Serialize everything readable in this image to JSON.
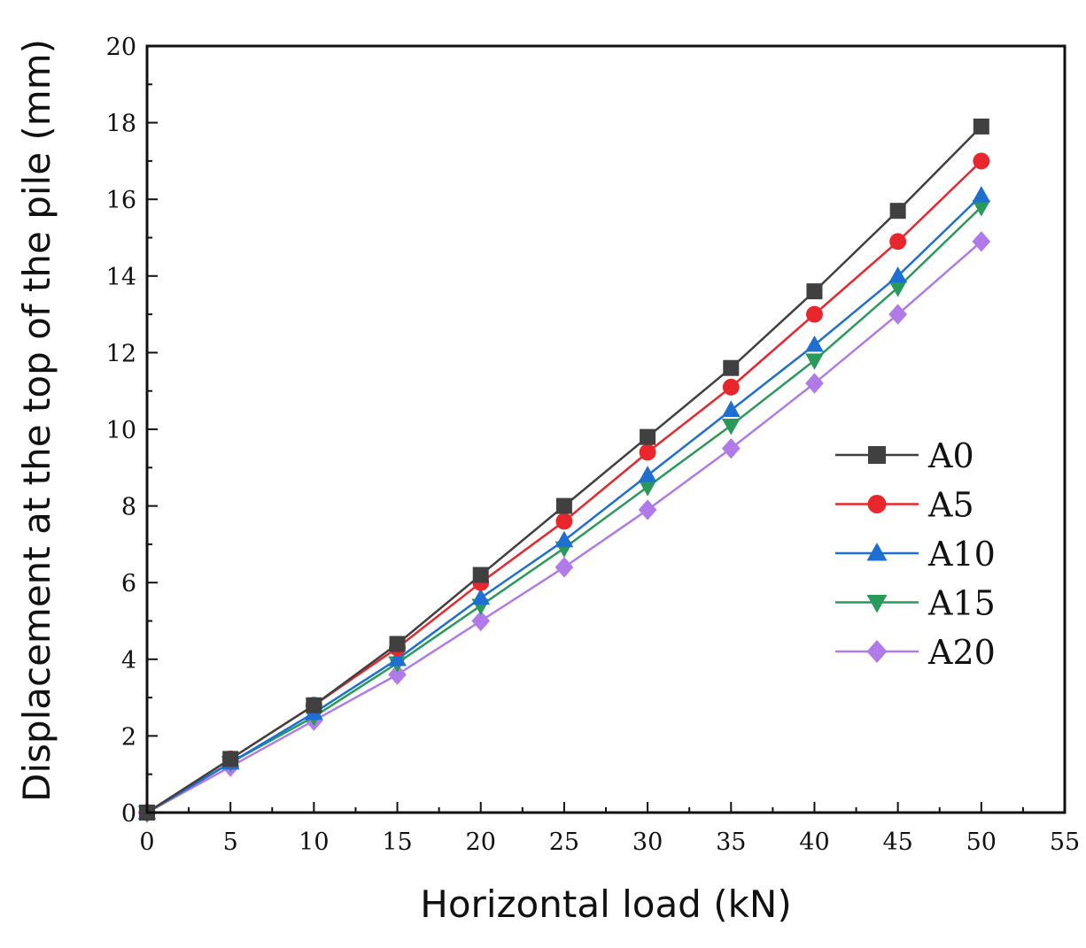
{
  "chart_data": {
    "type": "line",
    "xlabel": "Horizontal load (kN)",
    "ylabel": "Displacement at the top of the pile (mm)",
    "xlim": [
      0,
      55
    ],
    "ylim": [
      0,
      20
    ],
    "x_ticks": [
      0,
      5,
      10,
      15,
      20,
      25,
      30,
      35,
      40,
      45,
      50,
      55
    ],
    "y_ticks": [
      0,
      2,
      4,
      6,
      8,
      10,
      12,
      14,
      16,
      18,
      20
    ],
    "grid": false,
    "legend_position": "right-middle",
    "x": [
      0,
      5,
      10,
      15,
      20,
      25,
      30,
      35,
      40,
      45,
      50
    ],
    "series": [
      {
        "name": "A0",
        "marker": "square",
        "color": "#404040",
        "values": [
          0,
          1.4,
          2.8,
          4.4,
          6.2,
          8.0,
          9.8,
          11.6,
          13.6,
          15.7,
          17.9
        ]
      },
      {
        "name": "A5",
        "marker": "circle",
        "color": "#e8262b",
        "values": [
          0,
          1.4,
          2.8,
          4.3,
          6.0,
          7.6,
          9.4,
          11.1,
          13.0,
          14.9,
          17.0
        ]
      },
      {
        "name": "A10",
        "marker": "triangle-up",
        "color": "#1f6fd1",
        "values": [
          0,
          1.3,
          2.6,
          4.0,
          5.6,
          7.1,
          8.8,
          10.5,
          12.2,
          14.0,
          16.1
        ]
      },
      {
        "name": "A15",
        "marker": "triangle-down",
        "color": "#2a9a5a",
        "values": [
          0,
          1.3,
          2.5,
          3.9,
          5.4,
          6.9,
          8.5,
          10.1,
          11.8,
          13.7,
          15.8
        ]
      },
      {
        "name": "A20",
        "marker": "diamond",
        "color": "#b07be8",
        "values": [
          0,
          1.2,
          2.4,
          3.6,
          5.0,
          6.4,
          7.9,
          9.5,
          11.2,
          13.0,
          14.9
        ]
      }
    ]
  }
}
